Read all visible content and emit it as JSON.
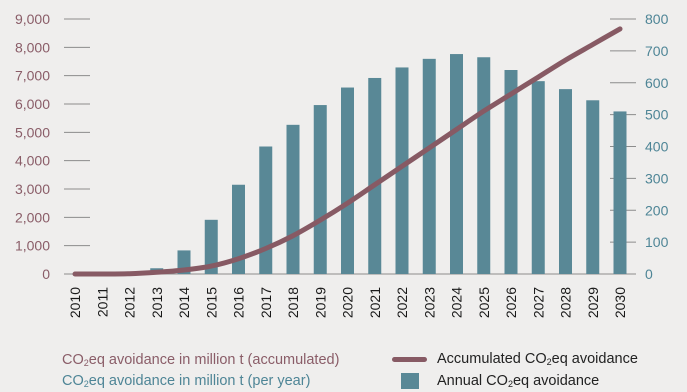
{
  "colors": {
    "background": "#efeeed",
    "bars": "#598896",
    "line": "#875a64",
    "left_axis_text": "#8a5d68",
    "right_axis_text": "#4e8596",
    "axis_line": "#8c8c8c"
  },
  "chart_data": {
    "type": "bar",
    "categories": [
      "2010",
      "2011",
      "2012",
      "2013",
      "2014",
      "2015",
      "2016",
      "2017",
      "2018",
      "2019",
      "2020",
      "2021",
      "2022",
      "2023",
      "2024",
      "2025",
      "2026",
      "2027",
      "2028",
      "2029",
      "2030"
    ],
    "series": [
      {
        "name": "Annual CO2eq avoidance",
        "type": "bar",
        "axis": "right",
        "values": [
          0,
          0,
          2,
          18,
          74,
          170,
          280,
          400,
          468,
          530,
          585,
          615,
          648,
          675,
          690,
          680,
          640,
          605,
          580,
          545,
          510
        ]
      },
      {
        "name": "Accumulated CO2eq avoidance",
        "type": "line",
        "axis": "left",
        "values": [
          0,
          0,
          10,
          60,
          140,
          280,
          540,
          900,
          1350,
          1900,
          2500,
          3150,
          3800,
          4450,
          5100,
          5750,
          6350,
          6950,
          7550,
          8100,
          8650
        ]
      }
    ],
    "left_axis": {
      "ticks": [
        "0",
        "1,000",
        "2,000",
        "3,000",
        "4,000",
        "5,000",
        "6,000",
        "7,000",
        "8,000",
        "9,000"
      ],
      "ylim": [
        0,
        9000
      ],
      "label_parts": [
        "CO",
        "2",
        "eq avoidance in million t (accumulated)"
      ]
    },
    "right_axis": {
      "ticks": [
        "0",
        "100",
        "200",
        "300",
        "400",
        "500",
        "600",
        "700",
        "800"
      ],
      "ylim": [
        0,
        800
      ],
      "label_parts": [
        "CO",
        "2",
        "eq avoidance in million t (per year)"
      ]
    },
    "legend": [
      {
        "series": 1,
        "label_parts": [
          "Accumulated CO",
          "2",
          "eq avoidance"
        ],
        "marker": "line"
      },
      {
        "series": 0,
        "label_parts": [
          "Annual CO",
          "2",
          "eq avoidance"
        ],
        "marker": "box"
      }
    ],
    "legend_placement": "bottom-right",
    "grid": false
  }
}
